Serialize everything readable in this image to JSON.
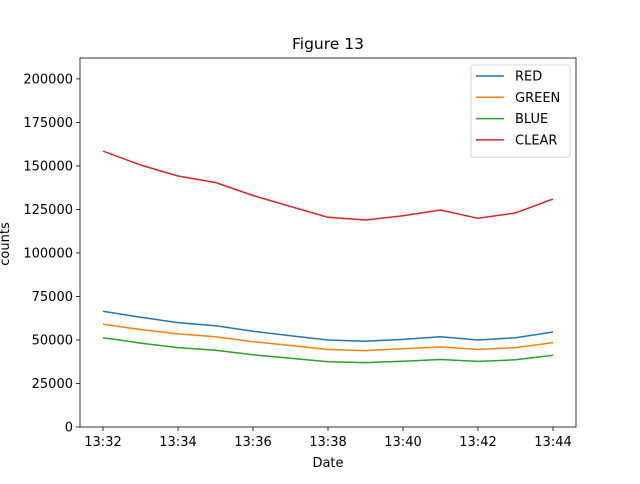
{
  "chart_data": {
    "type": "line",
    "title": "Figure 13",
    "xlabel": "Date",
    "ylabel": "counts",
    "x": [
      "13:32",
      "13:33",
      "13:34",
      "13:35",
      "13:36",
      "13:37",
      "13:38",
      "13:39",
      "13:40",
      "13:41",
      "13:42",
      "13:43",
      "13:44"
    ],
    "x_tick_labels": [
      "13:32",
      "13:34",
      "13:36",
      "13:38",
      "13:40",
      "13:42",
      "13:44"
    ],
    "y_tick_labels": [
      "0",
      "25000",
      "50000",
      "75000",
      "100000",
      "125000",
      "150000",
      "175000",
      "200000"
    ],
    "ylim": [
      0,
      212000
    ],
    "grid": false,
    "legend_position": "top-right",
    "series": [
      {
        "name": "RED",
        "color": "#1f77b4",
        "values": [
          66500,
          63000,
          60000,
          58200,
          55000,
          52400,
          50000,
          49300,
          50300,
          51800,
          50000,
          51300,
          54600
        ]
      },
      {
        "name": "GREEN",
        "color": "#ff7f0e",
        "values": [
          59000,
          56000,
          53500,
          51800,
          49000,
          46800,
          44500,
          43900,
          44900,
          46000,
          44500,
          45600,
          48500
        ]
      },
      {
        "name": "BLUE",
        "color": "#2ca02c",
        "values": [
          51300,
          48200,
          45600,
          44100,
          41500,
          39500,
          37500,
          37000,
          37800,
          38800,
          37700,
          38600,
          41200
        ]
      },
      {
        "name": "CLEAR",
        "color": "#d62728",
        "values": [
          158500,
          150500,
          144200,
          140500,
          133000,
          126700,
          120500,
          118900,
          121400,
          124700,
          119900,
          123000,
          131000
        ]
      }
    ]
  }
}
